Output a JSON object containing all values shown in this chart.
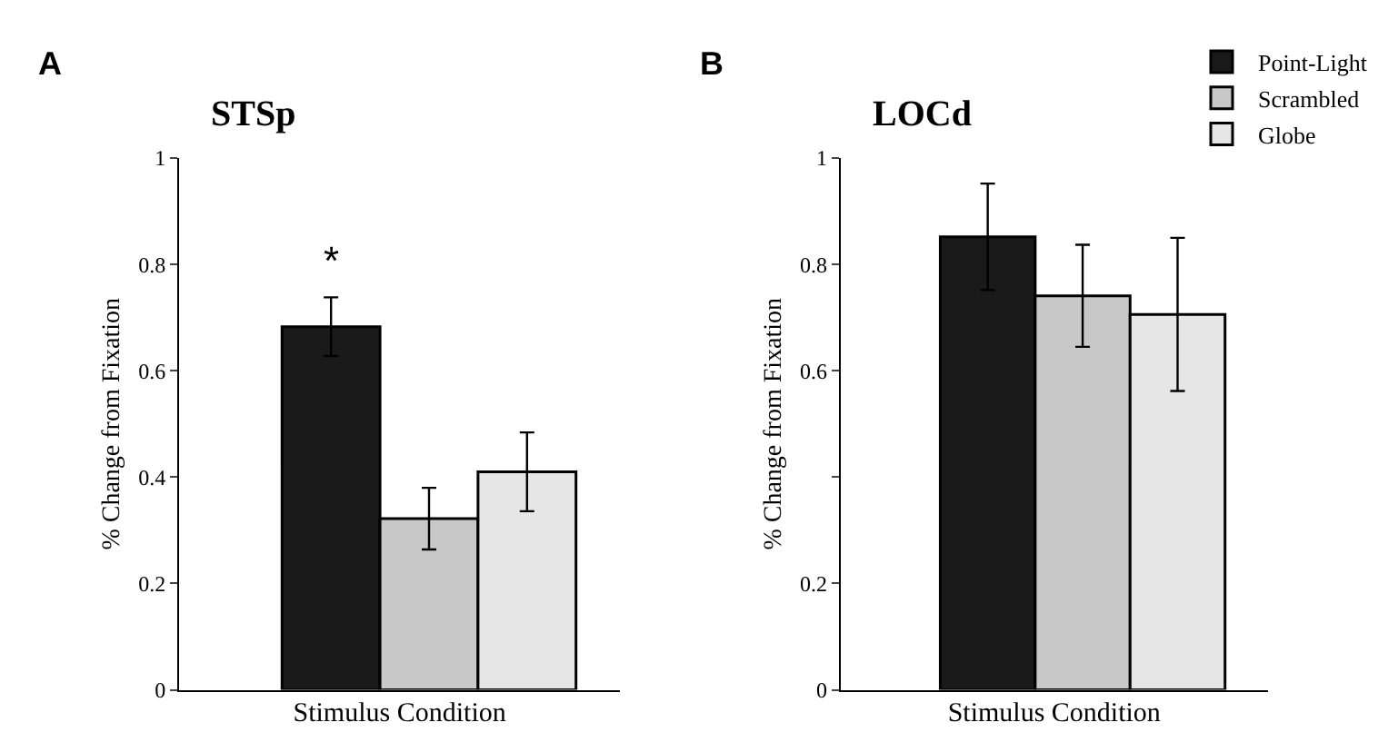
{
  "chart_data": [
    {
      "type": "bar",
      "title": "STSp",
      "xlabel": "Stimulus Condition",
      "ylabel": "% Change from Fixation",
      "categories": [
        null
      ],
      "series": [
        {
          "color": "#1a1a1a",
          "values": [
            0.683
          ],
          "errors": [
            0.055
          ]
        },
        {
          "color": "#c8c8c8",
          "values": [
            0.322
          ],
          "errors": [
            0.058
          ]
        },
        {
          "color": "#e6e6e6",
          "values": [
            0.41
          ],
          "errors": [
            0.074
          ]
        }
      ],
      "ylim": [
        0,
        1
      ],
      "yticks": [
        0,
        0.2,
        0.4,
        0.6,
        0.8,
        1
      ],
      "legend": false,
      "annotations": [
        "A",
        "*"
      ]
    },
    {
      "type": "bar",
      "title": "LOCd",
      "xlabel": "Stimulus Condition",
      "ylabel": "% Change from Fixation",
      "categories": [
        null
      ],
      "series": [
        {
          "name": "Point-Light",
          "color": "#1a1a1a",
          "values": [
            0.852
          ],
          "errors": [
            0.1
          ]
        },
        {
          "name": "Scrambled",
          "color": "#c8c8c8",
          "values": [
            0.741
          ],
          "errors": [
            0.096
          ]
        },
        {
          "name": "Globe",
          "color": "#e6e6e6",
          "values": [
            0.706
          ],
          "errors": [
            0.144
          ]
        }
      ],
      "ylim": [
        0,
        1
      ],
      "yticks": [
        0,
        0.2,
        {
          "value": 0.4,
          "label": null
        },
        0.6,
        0.8,
        1
      ],
      "legend": "top right",
      "annotations": [
        "B"
      ]
    }
  ]
}
